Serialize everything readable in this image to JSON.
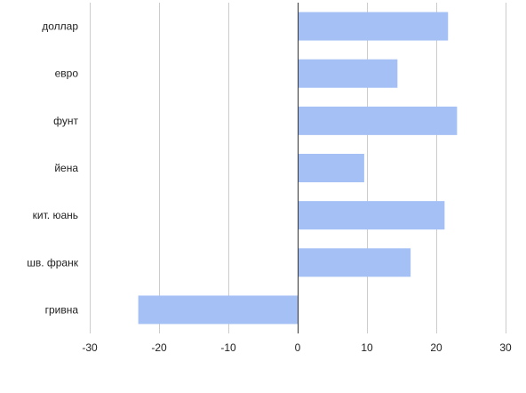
{
  "chart_data": {
    "type": "bar",
    "orientation": "horizontal",
    "title": "",
    "xlabel": "",
    "ylabel": "",
    "categories": [
      "доллар",
      "евро",
      "фунт",
      "йена",
      "кит. юань",
      "шв. франк",
      "гривна"
    ],
    "values": [
      21.7,
      14.4,
      23.0,
      9.6,
      21.2,
      16.3,
      -23.0
    ],
    "xlim": [
      -30,
      30
    ],
    "xticks": [
      "-30",
      "-20",
      "-10",
      "0",
      "10",
      "20",
      "30"
    ],
    "grid": true,
    "legend": "none",
    "colors": {
      "bar": "#a4c0f4",
      "grid": "#cccccc",
      "zero_line": "#333333",
      "text": "#222222"
    }
  }
}
